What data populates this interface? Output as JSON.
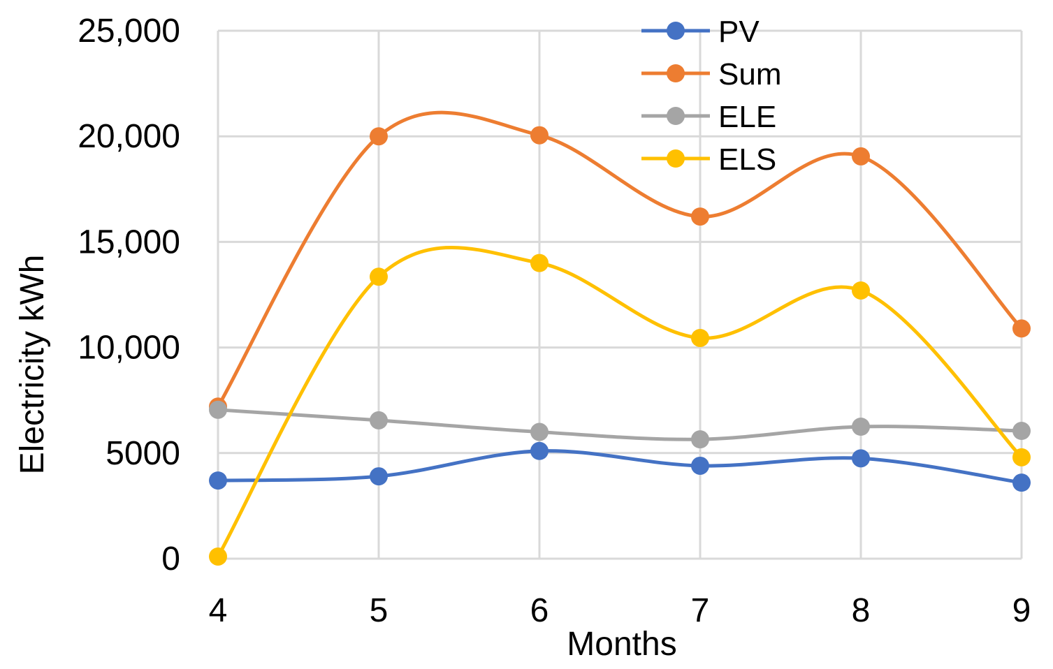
{
  "chart_data": {
    "type": "line",
    "smooth": true,
    "markers": "circle",
    "title": "",
    "xlabel": "Months",
    "ylabel": "Electricity kWh",
    "categories": [
      "4",
      "5",
      "6",
      "7",
      "8",
      "9"
    ],
    "x": [
      4,
      5,
      6,
      7,
      8,
      9
    ],
    "ylim": [
      0,
      25000
    ],
    "yticks": [
      0,
      5000,
      10000,
      15000,
      20000,
      25000
    ],
    "ytick_labels": [
      "0",
      "5000",
      "10,000",
      "15,000",
      "20,000",
      "25,000"
    ],
    "grid": true,
    "legend_position": "top-right",
    "series": [
      {
        "name": "PV",
        "color": "#4472C4",
        "values": [
          3700,
          3900,
          5100,
          4400,
          4750,
          3600
        ]
      },
      {
        "name": "Sum",
        "color": "#ED7D31",
        "values": [
          7200,
          20000,
          20050,
          16200,
          19050,
          10900
        ]
      },
      {
        "name": "ELE",
        "color": "#A5A5A5",
        "values": [
          7050,
          6550,
          6000,
          5650,
          6250,
          6050
        ]
      },
      {
        "name": "ELS",
        "color": "#FFC000",
        "values": [
          100,
          13350,
          14000,
          10450,
          12700,
          4800
        ]
      }
    ]
  }
}
